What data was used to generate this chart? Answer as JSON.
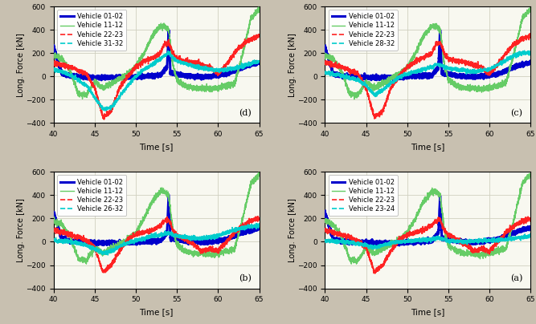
{
  "xlim": [
    40,
    65
  ],
  "xticks": [
    40,
    45,
    50,
    55,
    60,
    65
  ],
  "xlabel": "Time [s]",
  "ylabel": "Long. Force [kN]",
  "ylim": [
    -400,
    600
  ],
  "yticks": [
    -400,
    -200,
    0,
    200,
    400,
    600
  ],
  "background": "#f0f0f0",
  "outer_bg": "#d8d0c0",
  "grid_color": "#e8e8e8",
  "subplots": [
    {
      "label": "(d)",
      "legend_vehicles": [
        "Vehicle 01-02",
        "Vehicle 11-12",
        "Vehicle 22-23",
        "Vehicle 31-32"
      ]
    },
    {
      "label": "(c)",
      "legend_vehicles": [
        "Vehicle 01-02",
        "Vehicle 11-12",
        "Vehicle 22-23",
        "Vehicle 28-32"
      ]
    },
    {
      "label": "(b)",
      "legend_vehicles": [
        "Vehicle 01-02",
        "Vehicle 11-12",
        "Vehicle 22-23",
        "Vehicle 26-32"
      ]
    },
    {
      "label": "(a)",
      "legend_vehicles": [
        "Vehicle 01-02",
        "Vehicle 11-12",
        "Vehicle 22-23",
        "Vehicle 23-24"
      ]
    }
  ],
  "line_styles": [
    {
      "color": "#0000CC",
      "linestyle": "-",
      "linewidth": 2.2
    },
    {
      "color": "#66CC66",
      "linestyle": "-",
      "linewidth": 1.0
    },
    {
      "color": "#FF2222",
      "linestyle": "--",
      "linewidth": 1.2
    },
    {
      "color": "#00CCCC",
      "linestyle": "--",
      "linewidth": 1.2
    }
  ]
}
